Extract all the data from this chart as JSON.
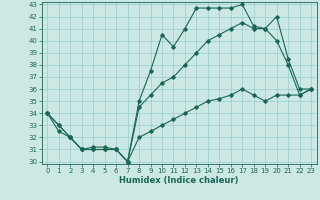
{
  "title": "",
  "xlabel": "Humidex (Indice chaleur)",
  "bg_color": "#cce8e4",
  "line_color": "#1a6655",
  "grid_color": "#99cccc",
  "ylim": [
    30,
    43
  ],
  "xlim": [
    -0.5,
    23.5
  ],
  "yticks": [
    30,
    31,
    32,
    33,
    34,
    35,
    36,
    37,
    38,
    39,
    40,
    41,
    42,
    43
  ],
  "xticks": [
    0,
    1,
    2,
    3,
    4,
    5,
    6,
    7,
    8,
    9,
    10,
    11,
    12,
    13,
    14,
    15,
    16,
    17,
    18,
    19,
    20,
    21,
    22,
    23
  ],
  "line1_x": [
    0,
    1,
    2,
    3,
    4,
    5,
    6,
    7,
    8,
    9,
    10,
    11,
    12,
    13,
    14,
    15,
    16,
    17,
    18,
    19,
    20,
    21,
    22,
    23
  ],
  "line1_y": [
    34,
    33,
    32,
    31,
    31,
    31,
    31,
    30,
    35,
    37.5,
    40.5,
    39.5,
    41.0,
    42.7,
    42.7,
    42.7,
    42.7,
    43.0,
    41.2,
    41.0,
    42.0,
    38.5,
    36.0,
    36.0
  ],
  "line2_x": [
    0,
    1,
    2,
    3,
    4,
    5,
    6,
    7,
    8,
    9,
    10,
    11,
    12,
    13,
    14,
    15,
    16,
    17,
    18,
    19,
    20,
    21,
    22,
    23
  ],
  "line2_y": [
    34,
    33,
    32,
    31,
    31,
    31,
    31,
    30,
    34.5,
    35.5,
    36.5,
    37.0,
    38.0,
    39.0,
    40.0,
    40.5,
    41.0,
    41.5,
    41.0,
    41.0,
    40.0,
    38.0,
    35.5,
    36.0
  ],
  "line3_x": [
    0,
    1,
    2,
    3,
    4,
    5,
    6,
    7,
    8,
    9,
    10,
    11,
    12,
    13,
    14,
    15,
    16,
    17,
    18,
    19,
    20,
    21,
    22,
    23
  ],
  "line3_y": [
    34,
    32.5,
    32,
    31,
    31.2,
    31.2,
    31,
    30,
    32.0,
    32.5,
    33.0,
    33.5,
    34.0,
    34.5,
    35.0,
    35.2,
    35.5,
    36.0,
    35.5,
    35.0,
    35.5,
    35.5,
    35.5,
    36.0
  ],
  "tick_fontsize": 5.0,
  "xlabel_fontsize": 6.0,
  "marker_size": 1.8,
  "linewidth": 0.8
}
